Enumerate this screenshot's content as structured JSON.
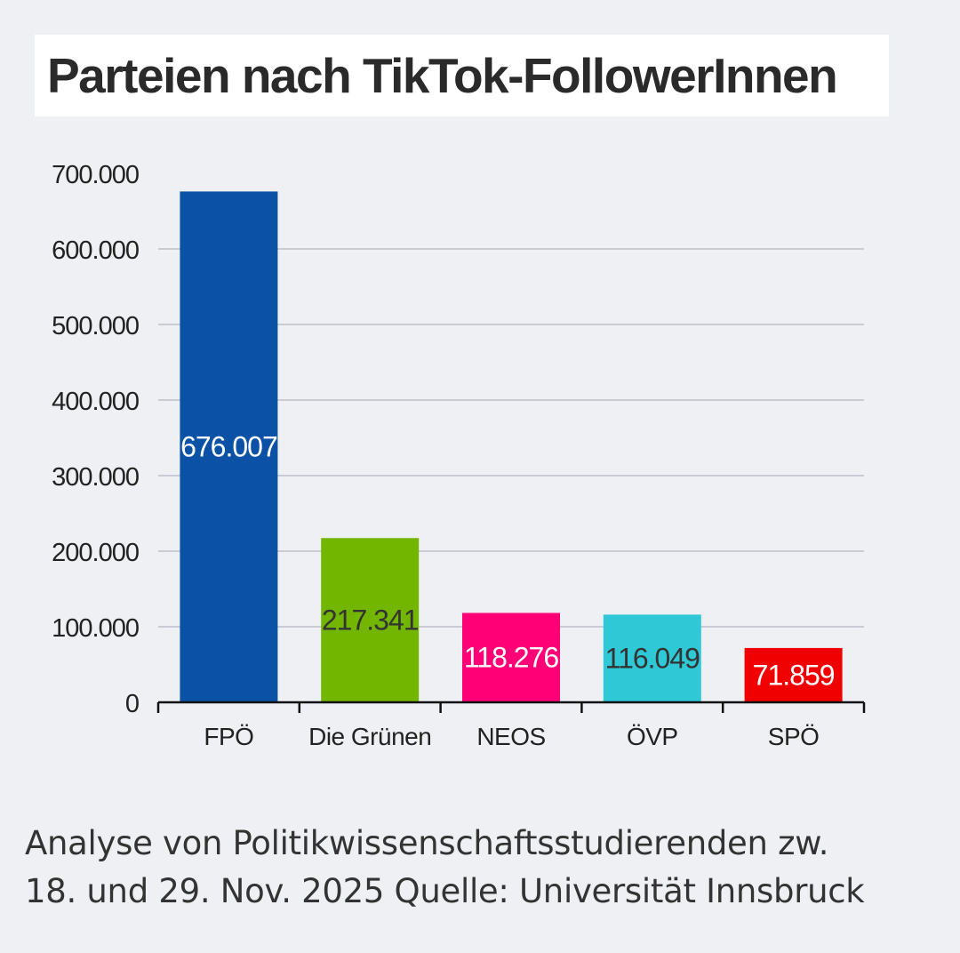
{
  "title": "Parteien nach TikTok-FollowerInnen",
  "source_line_1": "Analyse von Politikwissenschaftsstudierenden zw.",
  "source_line_2": "18. und 29. Nov. 2025 Quelle: Universität Innsbruck",
  "chart_data": {
    "type": "bar",
    "title": "Parteien nach TikTok-FollowerInnen",
    "xlabel": "",
    "ylabel": "",
    "ylim": [
      0,
      700000
    ],
    "yticks": [
      0,
      100000,
      200000,
      300000,
      400000,
      500000,
      600000,
      700000
    ],
    "ytick_labels": [
      "0",
      "100.000",
      "200.000",
      "300.000",
      "400.000",
      "500.000",
      "600.000",
      "700.000"
    ],
    "grid": true,
    "categories": [
      "FPÖ",
      "Die Grünen",
      "NEOS",
      "ÖVP",
      "SPÖ"
    ],
    "values": [
      676007,
      217341,
      118276,
      116049,
      71859
    ],
    "value_labels": [
      "676.007",
      "217.341",
      "118.276",
      "116.049",
      "71.859"
    ],
    "colors": [
      "#0b52a6",
      "#72b600",
      "#ff0077",
      "#2ec8d6",
      "#f00000"
    ],
    "label_colors": [
      "#ffffff",
      "#333333",
      "#ffffff",
      "#333333",
      "#ffffff"
    ]
  }
}
